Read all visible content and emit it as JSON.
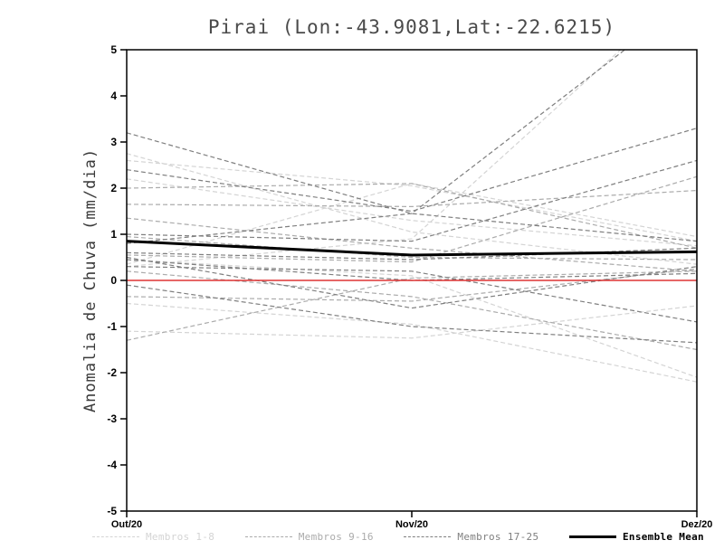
{
  "chart_data": {
    "type": "line",
    "title": "Pirai (Lon:-43.9081,Lat:-22.6215)",
    "ylabel": "Anomalia de Chuva (mm/dia)",
    "xlabel": "",
    "x_tick_labels": [
      "Out/20",
      "Nov/20",
      "Dez/20"
    ],
    "ylim": [
      -5,
      5
    ],
    "yticks": [
      -5,
      -4,
      -3,
      -2,
      -1,
      0,
      1,
      2,
      3,
      4,
      5
    ],
    "grid": false,
    "legend_position": "bottom",
    "zero_line": {
      "value": 0,
      "color": "#dd3333"
    },
    "groups": [
      {
        "name": "Membros 1-8",
        "color": "#d4d4d4",
        "dash": true,
        "series": [
          [
            2.75,
            1.05,
            0.35
          ],
          [
            2.6,
            2.05,
            0.85
          ],
          [
            0.3,
            0.9,
            6.5
          ],
          [
            0.45,
            0.1,
            -2.1
          ],
          [
            -0.5,
            -0.95,
            -2.2
          ],
          [
            -1.1,
            -1.25,
            -0.55
          ],
          [
            0.35,
            2.1,
            0.95
          ],
          [
            2.2,
            1.3,
            0.75
          ]
        ]
      },
      {
        "name": "Membros 9-16",
        "color": "#ababab",
        "dash": true,
        "series": [
          [
            1.65,
            1.6,
            1.95
          ],
          [
            1.35,
            0.7,
            0.2
          ],
          [
            0.55,
            0.4,
            2.25
          ],
          [
            0.2,
            -0.35,
            -1.5
          ],
          [
            -1.3,
            0.05,
            0.2
          ],
          [
            0.95,
            0.5,
            0.45
          ],
          [
            2.0,
            2.1,
            0.7
          ],
          [
            -0.35,
            -0.45,
            0.25
          ]
        ]
      },
      {
        "name": "Membros 17-25",
        "color": "#7f7f7f",
        "dash": true,
        "series": [
          [
            0.8,
            1.45,
            6.2
          ],
          [
            2.4,
            1.5,
            3.3
          ],
          [
            1.0,
            0.85,
            2.6
          ],
          [
            0.45,
            0.0,
            0.15
          ],
          [
            0.3,
            0.2,
            -0.9
          ],
          [
            -0.1,
            -1.0,
            -1.35
          ],
          [
            0.5,
            -0.6,
            0.3
          ],
          [
            3.2,
            1.45,
            0.85
          ],
          [
            0.6,
            0.45,
            0.7
          ]
        ]
      }
    ],
    "mean": {
      "name": "Ensemble Mean",
      "color": "#000000",
      "values": [
        0.85,
        0.55,
        0.62
      ]
    }
  }
}
